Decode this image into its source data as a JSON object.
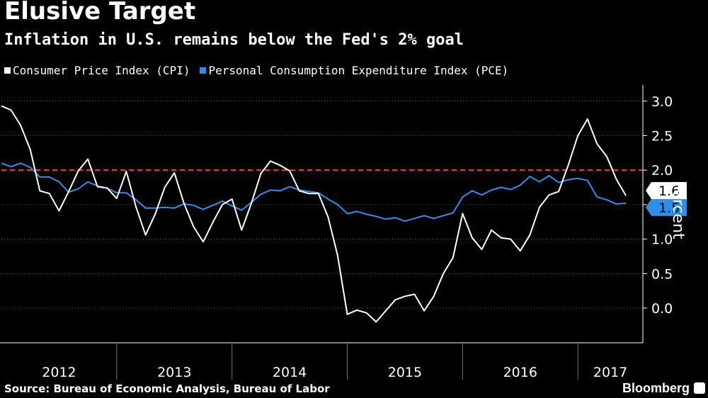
{
  "header": {
    "title": "Elusive Target",
    "subtitle": "Inflation in U.S. remains below the Fed's 2% goal"
  },
  "footer": {
    "source": "Source: Bureau of Economic Analysis, Bureau of Labor",
    "brand": "Bloomberg"
  },
  "colors": {
    "background": "#000000",
    "cpi": "#ffffff",
    "pce": "#2f8fe8",
    "target": "#e8542a",
    "grid": "#5a5a5a"
  },
  "chart_data": {
    "type": "line",
    "title": "Elusive Target",
    "ylabel": "Percent",
    "xlabel": "",
    "ylim": [
      -0.5,
      3.2
    ],
    "yticks": [
      0.0,
      0.5,
      1.0,
      1.5,
      2.0,
      2.5,
      3.0
    ],
    "ytick_labels": [
      "0.0",
      "0.5",
      "1.0",
      "1.5",
      "2.0",
      "2.5",
      "3.0"
    ],
    "year_labels": [
      "2012",
      "2013",
      "2014",
      "2015",
      "2016",
      "2017"
    ],
    "x_start": "2012-01",
    "x_end": "2017-06",
    "grid": true,
    "legend_position": "top-left",
    "reference_line": {
      "value": 2.0,
      "style": "dashed"
    },
    "end_labels": {
      "cpi": "1.6",
      "pce": "1.5"
    },
    "series": [
      {
        "name": "Consumer Price Index (CPI)",
        "key": "cpi",
        "x": [
          "2012-01",
          "2012-02",
          "2012-03",
          "2012-04",
          "2012-05",
          "2012-06",
          "2012-07",
          "2012-08",
          "2012-09",
          "2012-10",
          "2012-11",
          "2012-12",
          "2013-01",
          "2013-02",
          "2013-03",
          "2013-04",
          "2013-05",
          "2013-06",
          "2013-07",
          "2013-08",
          "2013-09",
          "2013-10",
          "2013-11",
          "2013-12",
          "2014-01",
          "2014-02",
          "2014-03",
          "2014-04",
          "2014-05",
          "2014-06",
          "2014-07",
          "2014-08",
          "2014-09",
          "2014-10",
          "2014-11",
          "2014-12",
          "2015-01",
          "2015-02",
          "2015-03",
          "2015-04",
          "2015-05",
          "2015-06",
          "2015-07",
          "2015-08",
          "2015-09",
          "2015-10",
          "2015-11",
          "2015-12",
          "2016-01",
          "2016-02",
          "2016-03",
          "2016-04",
          "2016-05",
          "2016-06",
          "2016-07",
          "2016-08",
          "2016-09",
          "2016-10",
          "2016-11",
          "2016-12",
          "2017-01",
          "2017-02",
          "2017-03",
          "2017-04",
          "2017-05",
          "2017-06"
        ],
        "values": [
          2.93,
          2.87,
          2.65,
          2.3,
          1.7,
          1.66,
          1.41,
          1.69,
          1.99,
          2.16,
          1.76,
          1.74,
          1.59,
          1.98,
          1.47,
          1.06,
          1.36,
          1.75,
          1.96,
          1.52,
          1.18,
          0.96,
          1.24,
          1.5,
          1.58,
          1.13,
          1.51,
          1.95,
          2.13,
          2.07,
          1.99,
          1.7,
          1.66,
          1.66,
          1.32,
          0.76,
          -0.09,
          -0.03,
          -0.07,
          -0.2,
          -0.04,
          0.12,
          0.17,
          0.2,
          -0.04,
          0.17,
          0.5,
          0.73,
          1.37,
          1.02,
          0.85,
          1.13,
          1.02,
          1.0,
          0.83,
          1.06,
          1.46,
          1.64,
          1.69,
          2.07,
          2.5,
          2.74,
          2.38,
          2.2,
          1.87,
          1.63
        ]
      },
      {
        "name": "Personal Consumption Expenditure Index (PCE)",
        "key": "pce",
        "x": [
          "2012-01",
          "2012-02",
          "2012-03",
          "2012-04",
          "2012-05",
          "2012-06",
          "2012-07",
          "2012-08",
          "2012-09",
          "2012-10",
          "2012-11",
          "2012-12",
          "2013-01",
          "2013-02",
          "2013-03",
          "2013-04",
          "2013-05",
          "2013-06",
          "2013-07",
          "2013-08",
          "2013-09",
          "2013-10",
          "2013-11",
          "2013-12",
          "2014-01",
          "2014-02",
          "2014-03",
          "2014-04",
          "2014-05",
          "2014-06",
          "2014-07",
          "2014-08",
          "2014-09",
          "2014-10",
          "2014-11",
          "2014-12",
          "2015-01",
          "2015-02",
          "2015-03",
          "2015-04",
          "2015-05",
          "2015-06",
          "2015-07",
          "2015-08",
          "2015-09",
          "2015-10",
          "2015-11",
          "2015-12",
          "2016-01",
          "2016-02",
          "2016-03",
          "2016-04",
          "2016-05",
          "2016-06",
          "2016-07",
          "2016-08",
          "2016-09",
          "2016-10",
          "2016-11",
          "2016-12",
          "2017-01",
          "2017-02",
          "2017-03",
          "2017-04",
          "2017-05",
          "2017-06"
        ],
        "values": [
          2.1,
          2.05,
          2.1,
          2.04,
          1.9,
          1.9,
          1.83,
          1.68,
          1.73,
          1.83,
          1.77,
          1.74,
          1.67,
          1.67,
          1.57,
          1.45,
          1.45,
          1.46,
          1.45,
          1.51,
          1.49,
          1.43,
          1.49,
          1.55,
          1.48,
          1.42,
          1.53,
          1.65,
          1.71,
          1.7,
          1.76,
          1.71,
          1.69,
          1.67,
          1.58,
          1.5,
          1.37,
          1.4,
          1.36,
          1.33,
          1.29,
          1.31,
          1.26,
          1.3,
          1.34,
          1.3,
          1.34,
          1.38,
          1.61,
          1.7,
          1.64,
          1.71,
          1.75,
          1.72,
          1.78,
          1.91,
          1.83,
          1.92,
          1.82,
          1.86,
          1.88,
          1.85,
          1.61,
          1.57,
          1.51,
          1.52
        ]
      }
    ]
  }
}
